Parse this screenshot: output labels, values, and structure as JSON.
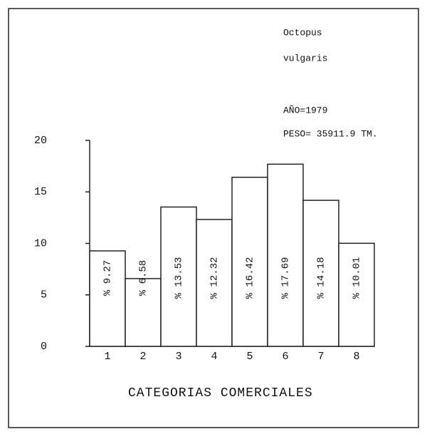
{
  "chart_data": {
    "type": "bar",
    "annotations": [
      "Octopus",
      "vulgaris",
      "AÑO=1979",
      "PESO= 35911.9 TM."
    ],
    "x_label": "CATEGORIAS COMERCIALES",
    "categories": [
      "1",
      "2",
      "3",
      "4",
      "5",
      "6",
      "7",
      "8"
    ],
    "values": [
      9.27,
      6.58,
      13.53,
      12.32,
      16.42,
      17.69,
      14.18,
      10.01
    ],
    "value_labels": [
      "% 9.27",
      "% 6.58",
      "% 13.53",
      "% 12.32",
      "% 16.42",
      "% 17.69",
      "% 14.18",
      "% 10.01"
    ],
    "color": "#ffffff",
    "ylim": [
      0,
      20
    ],
    "yticks": [
      0,
      5,
      10,
      15,
      20
    ],
    "grid": false
  }
}
